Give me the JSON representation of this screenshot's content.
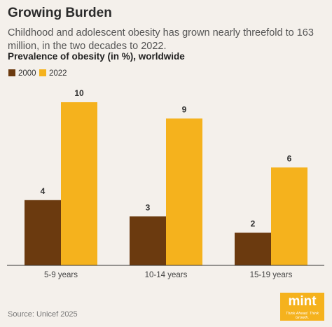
{
  "chart_data": {
    "type": "bar",
    "title": "Growing Burden",
    "subtitle": "Childhood and adolescent obesity has grown nearly threefold to 163 million, in the two decades to 2022.",
    "y_label": "Prevalence of obesity (in %), worldwide",
    "categories": [
      "5-9 years",
      "10-14 years",
      "15-19 years"
    ],
    "series": [
      {
        "name": "2000",
        "color": "#6b3a0f",
        "values": [
          4,
          3,
          2
        ]
      },
      {
        "name": "2022",
        "color": "#f5b21d",
        "values": [
          10,
          9,
          6
        ]
      }
    ],
    "source": "Source: Unicef 2025",
    "logo": "mint",
    "tagline": "Think Ahead. Think Growth."
  }
}
